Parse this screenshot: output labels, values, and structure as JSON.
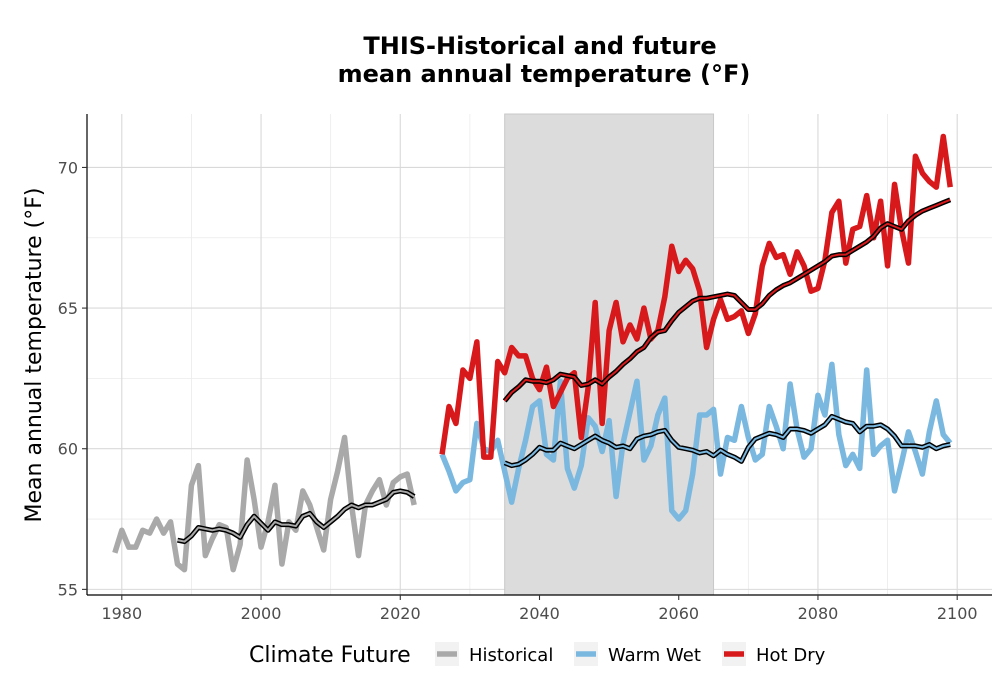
{
  "chart_data": {
    "type": "line",
    "title_lines": [
      "THIS-Historical and future",
      "mean annual temperature (°F)"
    ],
    "xlabel": "",
    "ylabel": "Mean annual temperature (°F)",
    "xlim": [
      1975,
      2105
    ],
    "ylim": [
      54.8,
      71.9
    ],
    "x_ticks": [
      1980,
      2000,
      2020,
      2040,
      2060,
      2080,
      2100
    ],
    "y_ticks": [
      55,
      60,
      65,
      70
    ],
    "grid": true,
    "shaded_period": {
      "x_range": [
        2035,
        2065
      ],
      "color": "#dcdcdc"
    },
    "legend": {
      "title": "Climate Future",
      "placement": "bottom",
      "entries": [
        {
          "label": "Historical",
          "color": "#a9a9a9"
        },
        {
          "label": "Warm Wet",
          "color": "#7bb8e0"
        },
        {
          "label": "Hot Dry",
          "color": "#d7191c"
        }
      ]
    },
    "series": [
      {
        "name": "Historical",
        "kind": "annual",
        "color": "#a9a9a9",
        "x": [
          1979,
          1980,
          1981,
          1982,
          1983,
          1984,
          1985,
          1986,
          1987,
          1988,
          1989,
          1990,
          1991,
          1992,
          1993,
          1994,
          1995,
          1996,
          1997,
          1998,
          1999,
          2000,
          2001,
          2002,
          2003,
          2004,
          2005,
          2006,
          2007,
          2008,
          2009,
          2010,
          2011,
          2012,
          2013,
          2014,
          2015,
          2016,
          2017,
          2018,
          2019,
          2020,
          2021,
          2022
        ],
        "y": [
          56.3,
          57.1,
          56.5,
          56.5,
          57.1,
          57.0,
          57.5,
          57.0,
          57.4,
          55.9,
          55.7,
          58.7,
          59.4,
          56.2,
          56.8,
          57.3,
          57.2,
          55.7,
          56.6,
          59.6,
          58.2,
          56.5,
          57.4,
          58.7,
          55.9,
          57.4,
          57.1,
          58.5,
          58.0,
          57.2,
          56.4,
          58.2,
          59.2,
          60.4,
          58.0,
          56.2,
          58.0,
          58.5,
          58.9,
          58.0,
          58.8,
          59.0,
          59.1,
          58.0
        ]
      },
      {
        "name": "Historical",
        "kind": "rolling",
        "color": "#000000",
        "x": [
          1988,
          1989,
          1990,
          1991,
          1992,
          1993,
          1994,
          1995,
          1996,
          1997,
          1998,
          1999,
          2000,
          2001,
          2002,
          2003,
          2004,
          2005,
          2006,
          2007,
          2008,
          2009,
          2010,
          2011,
          2012,
          2013,
          2014,
          2015,
          2016,
          2017,
          2018,
          2019,
          2020,
          2021,
          2022
        ],
        "y": [
          56.75,
          56.7,
          56.9,
          57.2,
          57.15,
          57.1,
          57.15,
          57.1,
          57.0,
          56.85,
          57.3,
          57.6,
          57.35,
          57.1,
          57.4,
          57.3,
          57.3,
          57.25,
          57.6,
          57.7,
          57.4,
          57.2,
          57.4,
          57.6,
          57.85,
          58.0,
          57.9,
          58.0,
          58.0,
          58.1,
          58.2,
          58.45,
          58.5,
          58.45,
          58.3
        ]
      },
      {
        "name": "Warm Wet",
        "kind": "annual",
        "color": "#7bb8e0",
        "x": [
          2026,
          2027,
          2028,
          2029,
          2030,
          2031,
          2032,
          2033,
          2034,
          2035,
          2036,
          2037,
          2038,
          2039,
          2040,
          2041,
          2042,
          2043,
          2044,
          2045,
          2046,
          2047,
          2048,
          2049,
          2050,
          2051,
          2052,
          2053,
          2054,
          2055,
          2056,
          2057,
          2058,
          2059,
          2060,
          2061,
          2062,
          2063,
          2064,
          2065,
          2066,
          2067,
          2068,
          2069,
          2070,
          2071,
          2072,
          2073,
          2074,
          2075,
          2076,
          2077,
          2078,
          2079,
          2080,
          2081,
          2082,
          2083,
          2084,
          2085,
          2086,
          2087,
          2088,
          2089,
          2090,
          2091,
          2092,
          2093,
          2094,
          2095,
          2096,
          2097,
          2098,
          2099
        ],
        "y": [
          59.8,
          59.2,
          58.5,
          58.8,
          58.9,
          60.9,
          60.0,
          59.9,
          60.3,
          59.2,
          58.1,
          59.3,
          60.3,
          61.5,
          61.7,
          59.8,
          59.6,
          62.4,
          59.3,
          58.6,
          59.4,
          61.1,
          60.8,
          59.9,
          61.0,
          58.3,
          60.2,
          61.3,
          62.4,
          59.6,
          60.1,
          61.2,
          61.8,
          57.8,
          57.5,
          57.8,
          59.1,
          61.2,
          61.2,
          61.4,
          59.1,
          60.4,
          60.3,
          61.5,
          60.4,
          59.6,
          59.8,
          61.5,
          60.8,
          60.0,
          62.3,
          60.7,
          59.7,
          60.0,
          61.9,
          61.2,
          63.0,
          60.5,
          59.4,
          59.8,
          59.3,
          62.8,
          59.8,
          60.1,
          60.3,
          58.5,
          59.5,
          60.6,
          59.9,
          59.1,
          60.6,
          61.7,
          60.5,
          60.2
        ]
      },
      {
        "name": "Warm Wet",
        "kind": "rolling",
        "color": "#000000",
        "x": [
          2035,
          2036,
          2037,
          2038,
          2039,
          2040,
          2041,
          2042,
          2043,
          2044,
          2045,
          2046,
          2047,
          2048,
          2049,
          2050,
          2051,
          2052,
          2053,
          2054,
          2055,
          2056,
          2057,
          2058,
          2059,
          2060,
          2061,
          2062,
          2063,
          2064,
          2065,
          2066,
          2067,
          2068,
          2069,
          2070,
          2071,
          2072,
          2073,
          2074,
          2075,
          2076,
          2077,
          2078,
          2079,
          2080,
          2081,
          2082,
          2083,
          2084,
          2085,
          2086,
          2087,
          2088,
          2089,
          2090,
          2091,
          2092,
          2093,
          2094,
          2095,
          2096,
          2097,
          2098,
          2099
        ],
        "y": [
          59.5,
          59.4,
          59.45,
          59.6,
          59.8,
          60.05,
          59.95,
          59.95,
          60.2,
          60.1,
          60.0,
          60.15,
          60.3,
          60.45,
          60.3,
          60.2,
          60.05,
          60.1,
          60.0,
          60.35,
          60.45,
          60.5,
          60.6,
          60.65,
          60.3,
          60.05,
          60.0,
          59.95,
          59.85,
          59.9,
          59.75,
          59.95,
          59.8,
          59.7,
          59.55,
          60.05,
          60.35,
          60.45,
          60.55,
          60.5,
          60.4,
          60.7,
          60.7,
          60.65,
          60.55,
          60.7,
          60.85,
          61.15,
          61.05,
          60.95,
          60.9,
          60.6,
          60.8,
          60.8,
          60.85,
          60.7,
          60.45,
          60.1,
          60.1,
          60.1,
          60.05,
          60.15,
          60.0,
          60.1,
          60.15
        ]
      },
      {
        "name": "Hot Dry",
        "kind": "annual",
        "color": "#d7191c",
        "x": [
          2026,
          2027,
          2028,
          2029,
          2030,
          2031,
          2032,
          2033,
          2034,
          2035,
          2036,
          2037,
          2038,
          2039,
          2040,
          2041,
          2042,
          2043,
          2044,
          2045,
          2046,
          2047,
          2048,
          2049,
          2050,
          2051,
          2052,
          2053,
          2054,
          2055,
          2056,
          2057,
          2058,
          2059,
          2060,
          2061,
          2062,
          2063,
          2064,
          2065,
          2066,
          2067,
          2068,
          2069,
          2070,
          2071,
          2072,
          2073,
          2074,
          2075,
          2076,
          2077,
          2078,
          2079,
          2080,
          2081,
          2082,
          2083,
          2084,
          2085,
          2086,
          2087,
          2088,
          2089,
          2090,
          2091,
          2092,
          2093,
          2094,
          2095,
          2096,
          2097,
          2098,
          2099
        ],
        "y": [
          59.8,
          61.5,
          60.9,
          62.8,
          62.5,
          63.8,
          59.7,
          59.7,
          63.1,
          62.7,
          63.6,
          63.3,
          63.3,
          62.5,
          62.1,
          62.9,
          61.5,
          62.0,
          62.5,
          62.7,
          60.4,
          62.2,
          65.2,
          60.9,
          64.2,
          65.2,
          63.8,
          64.4,
          63.9,
          65.0,
          63.9,
          64.2,
          65.4,
          67.2,
          66.3,
          66.7,
          66.4,
          65.6,
          63.6,
          64.6,
          65.3,
          64.6,
          64.7,
          64.9,
          64.1,
          64.8,
          66.5,
          67.3,
          66.8,
          66.9,
          66.2,
          67.0,
          66.5,
          65.6,
          65.7,
          66.7,
          68.4,
          68.8,
          66.6,
          67.8,
          67.9,
          69.0,
          67.5,
          68.8,
          66.5,
          69.4,
          67.8,
          66.6,
          70.4,
          69.8,
          69.5,
          69.3,
          71.1,
          69.3
        ]
      },
      {
        "name": "Hot Dry",
        "kind": "rolling",
        "color": "#000000",
        "x": [
          2035,
          2036,
          2037,
          2038,
          2039,
          2040,
          2041,
          2042,
          2043,
          2044,
          2045,
          2046,
          2047,
          2048,
          2049,
          2050,
          2051,
          2052,
          2053,
          2054,
          2055,
          2056,
          2057,
          2058,
          2059,
          2060,
          2061,
          2062,
          2063,
          2064,
          2065,
          2066,
          2067,
          2068,
          2069,
          2070,
          2071,
          2072,
          2073,
          2074,
          2075,
          2076,
          2077,
          2078,
          2079,
          2080,
          2081,
          2082,
          2083,
          2084,
          2085,
          2086,
          2087,
          2088,
          2089,
          2090,
          2091,
          2092,
          2093,
          2094,
          2095,
          2096,
          2097,
          2098,
          2099
        ],
        "y": [
          61.7,
          62.0,
          62.2,
          62.45,
          62.4,
          62.4,
          62.35,
          62.45,
          62.65,
          62.6,
          62.55,
          62.25,
          62.3,
          62.45,
          62.3,
          62.55,
          62.75,
          63.0,
          63.2,
          63.45,
          63.6,
          63.95,
          64.15,
          64.2,
          64.55,
          64.85,
          65.05,
          65.25,
          65.35,
          65.35,
          65.4,
          65.45,
          65.5,
          65.45,
          65.2,
          64.95,
          64.95,
          65.15,
          65.45,
          65.65,
          65.8,
          65.9,
          66.05,
          66.2,
          66.35,
          66.5,
          66.65,
          66.85,
          66.9,
          66.9,
          67.05,
          67.2,
          67.35,
          67.55,
          67.85,
          68.0,
          67.9,
          67.8,
          68.1,
          68.3,
          68.45,
          68.55,
          68.65,
          68.75,
          68.85
        ]
      }
    ]
  }
}
